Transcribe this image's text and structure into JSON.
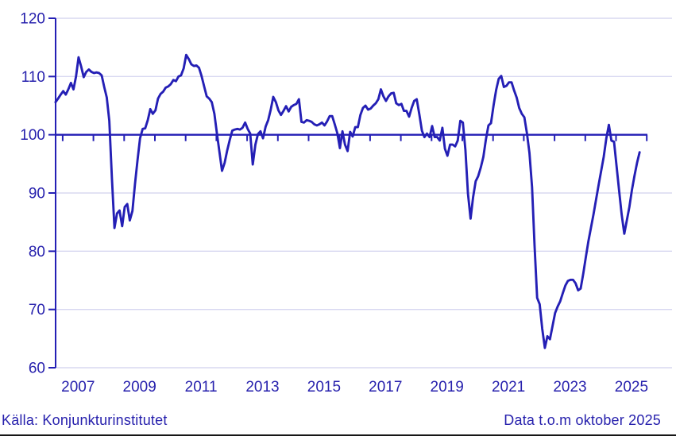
{
  "chart_data": {
    "type": "line",
    "title": "",
    "xlabel": "",
    "ylabel": "",
    "frequency": "monthly",
    "start": "2006-10",
    "end": "2025-10",
    "values": [
      105.6,
      106.2,
      106.9,
      107.5,
      106.9,
      107.8,
      108.9,
      107.8,
      110.0,
      113.3,
      111.7,
      109.9,
      110.8,
      111.2,
      110.8,
      110.6,
      110.7,
      110.6,
      110.2,
      108.2,
      106.4,
      102.4,
      92.5,
      84.0,
      86.5,
      87.0,
      84.3,
      87.6,
      88.1,
      85.3,
      86.9,
      91.5,
      95.6,
      99.4,
      101.0,
      101.1,
      102.5,
      104.4,
      103.6,
      104.2,
      106.2,
      107.0,
      107.4,
      108.1,
      108.3,
      108.7,
      109.4,
      109.2,
      110.0,
      110.2,
      111.4,
      113.7,
      113.0,
      112.1,
      111.8,
      111.9,
      111.5,
      110.1,
      108.3,
      106.6,
      106.2,
      105.6,
      103.6,
      100.2,
      97.0,
      93.8,
      95.2,
      97.3,
      99.1,
      100.7,
      100.9,
      101.0,
      100.9,
      101.2,
      102.1,
      101.0,
      100.2,
      94.9,
      98.3,
      100.1,
      100.6,
      99.4,
      101.4,
      102.5,
      104.3,
      106.5,
      105.6,
      104.2,
      103.4,
      104.1,
      104.9,
      104.0,
      104.8,
      105.1,
      105.3,
      106.1,
      102.2,
      102.1,
      102.5,
      102.4,
      102.2,
      101.8,
      101.6,
      101.8,
      102.1,
      101.6,
      102.3,
      103.2,
      103.2,
      101.8,
      100.3,
      97.7,
      100.6,
      98.3,
      97.2,
      100.5,
      99.7,
      101.3,
      101.3,
      103.4,
      104.6,
      105.0,
      104.3,
      104.5,
      105.0,
      105.4,
      106.1,
      107.8,
      106.6,
      105.8,
      106.6,
      107.1,
      107.2,
      105.4,
      105.1,
      105.3,
      104.1,
      104.1,
      103.1,
      104.6,
      105.8,
      106.1,
      103.5,
      100.7,
      99.6,
      100.2,
      99.6,
      101.5,
      99.6,
      99.6,
      99.0,
      101.2,
      97.6,
      96.4,
      98.3,
      98.3,
      98.0,
      99.0,
      102.4,
      102.1,
      97.4,
      89.9,
      85.6,
      89.3,
      92.0,
      92.9,
      94.4,
      96.2,
      99.2,
      101.6,
      102.0,
      105.1,
      107.7,
      109.6,
      110.1,
      108.2,
      108.4,
      109.0,
      109.0,
      107.6,
      106.4,
      104.6,
      103.6,
      103.0,
      100.3,
      96.9,
      91.0,
      80.8,
      72.0,
      70.9,
      66.7,
      63.4,
      65.4,
      64.9,
      67.1,
      69.4,
      70.5,
      71.4,
      72.8,
      74.1,
      74.9,
      75.1,
      75.1,
      74.5,
      73.3,
      73.6,
      76.2,
      79.0,
      81.7,
      84.0,
      86.3,
      88.9,
      91.4,
      93.8,
      96.2,
      99.4,
      101.7,
      99.0,
      98.8,
      94.6,
      90.4,
      86.3,
      83.0,
      85.3,
      87.6,
      90.5,
      93.0,
      95.2,
      97.0
    ],
    "ylim": [
      60,
      120
    ],
    "y_ticks": [
      60,
      70,
      80,
      90,
      100,
      110,
      120
    ],
    "x_tick_labels": [
      "2007",
      "2009",
      "2011",
      "2013",
      "2015",
      "2017",
      "2019",
      "2021",
      "2023",
      "2025"
    ],
    "minor_x_ticks_yearly": true,
    "reference_line": 100,
    "grid": true,
    "legend": false,
    "source": "Källa: Konjunkturinstitutet",
    "note": "Data t.o.m oktober 2025",
    "colors": {
      "line": "#241fb5",
      "axis": "#241fb5",
      "grid": "#d9d9f1",
      "text": "#2721ad",
      "border": "#161616",
      "background": "#ffffff"
    }
  }
}
